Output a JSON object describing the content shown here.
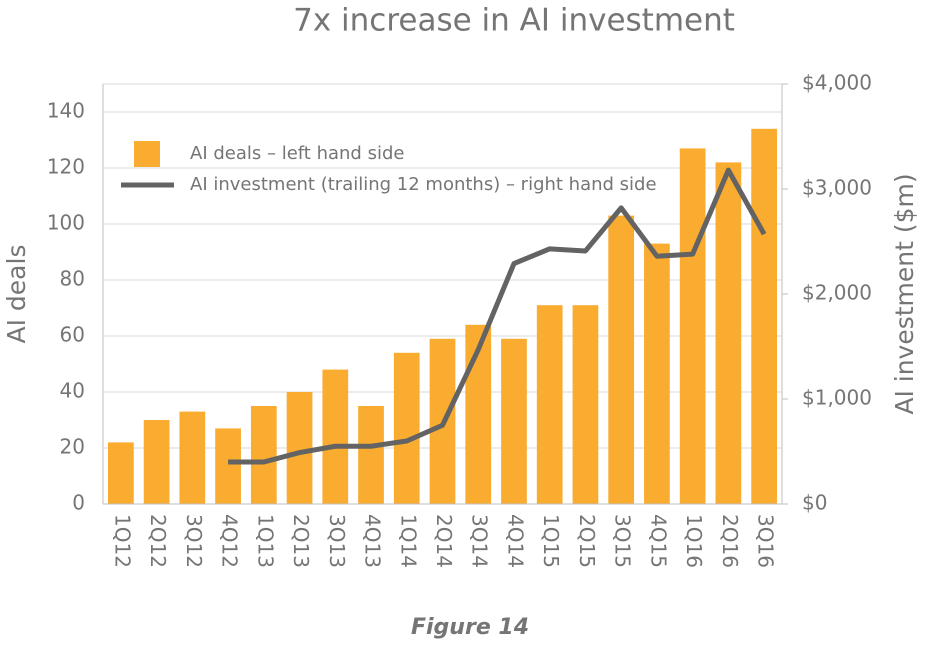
{
  "chart_data": {
    "type": "bar_line",
    "title": "7x increase in AI investment",
    "y_label": "AI deals",
    "y2_label": "AI investment ($m)",
    "caption": "Figure 14",
    "categories": [
      "1Q12",
      "2Q12",
      "3Q12",
      "4Q12",
      "1Q13",
      "2Q13",
      "3Q13",
      "4Q13",
      "1Q14",
      "2Q14",
      "3Q14",
      "4Q14",
      "1Q15",
      "2Q15",
      "3Q15",
      "4Q15",
      "1Q16",
      "2Q16",
      "3Q16"
    ],
    "series": [
      {
        "name": "AI deals – left hand side",
        "type": "bar",
        "color": "#f9ac2f",
        "values": [
          22,
          30,
          33,
          27,
          35,
          40,
          48,
          35,
          54,
          59,
          64,
          59,
          71,
          71,
          103,
          93,
          127,
          122,
          134
        ]
      },
      {
        "name": "AI investment (trailing 12 months) – right hand side",
        "type": "line",
        "axis": "y2",
        "color": "#636363",
        "values": [
          null,
          null,
          null,
          400,
          400,
          490,
          550,
          550,
          600,
          750,
          1470,
          2290,
          2430,
          2410,
          2820,
          2360,
          2380,
          3180,
          2570
        ]
      }
    ],
    "ylim": [
      0,
      150
    ],
    "yticks": [
      0,
      20,
      40,
      60,
      80,
      100,
      120,
      140
    ],
    "y2lim": [
      0,
      4000
    ],
    "y2ticks": [
      {
        "value": 0,
        "label": "$0"
      },
      {
        "value": 1000,
        "label": "$1,000"
      },
      {
        "value": 2000,
        "label": "$2,000"
      },
      {
        "value": 3000,
        "label": "$3,000"
      },
      {
        "value": 4000,
        "label": "$4,000"
      }
    ],
    "grid": true,
    "legend": "top-left"
  }
}
